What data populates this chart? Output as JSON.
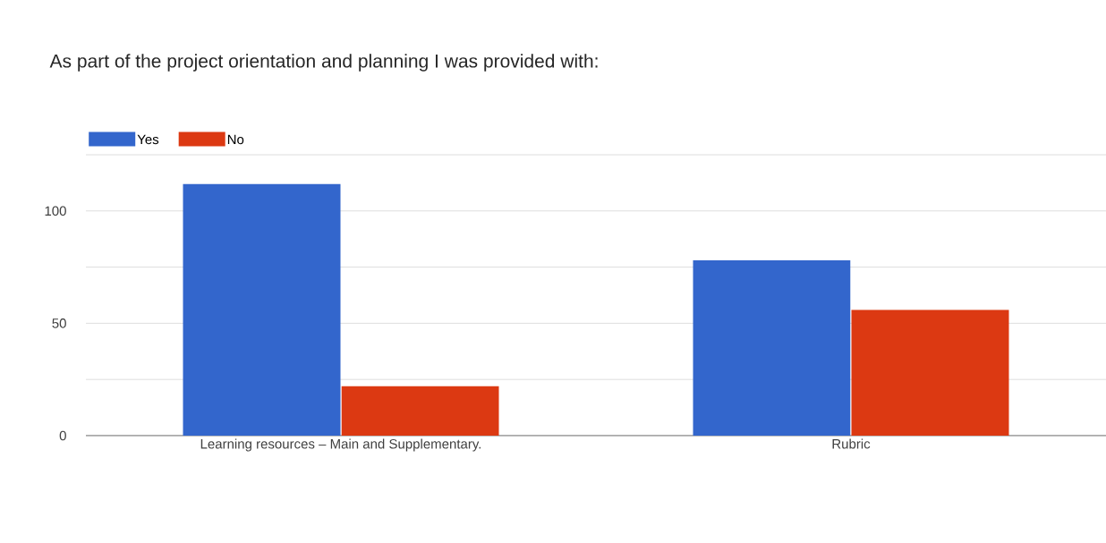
{
  "chart_data": {
    "type": "bar",
    "title": "As part of the project orientation and planning I was provided with:",
    "categories": [
      "Learning resources – Main and Supplementary.",
      "Rubric"
    ],
    "series": [
      {
        "name": "Yes",
        "color": "#3366cc",
        "values": [
          112,
          78
        ]
      },
      {
        "name": "No",
        "color": "#dc3912",
        "values": [
          22,
          56
        ]
      }
    ],
    "ylim": [
      0,
      125
    ],
    "yticks": [
      0,
      {
        "value": 25,
        "label": null
      },
      50,
      {
        "value": 75,
        "label": null
      },
      100,
      {
        "value": 125,
        "label": null
      }
    ],
    "grid": "y",
    "legend": "top left"
  }
}
